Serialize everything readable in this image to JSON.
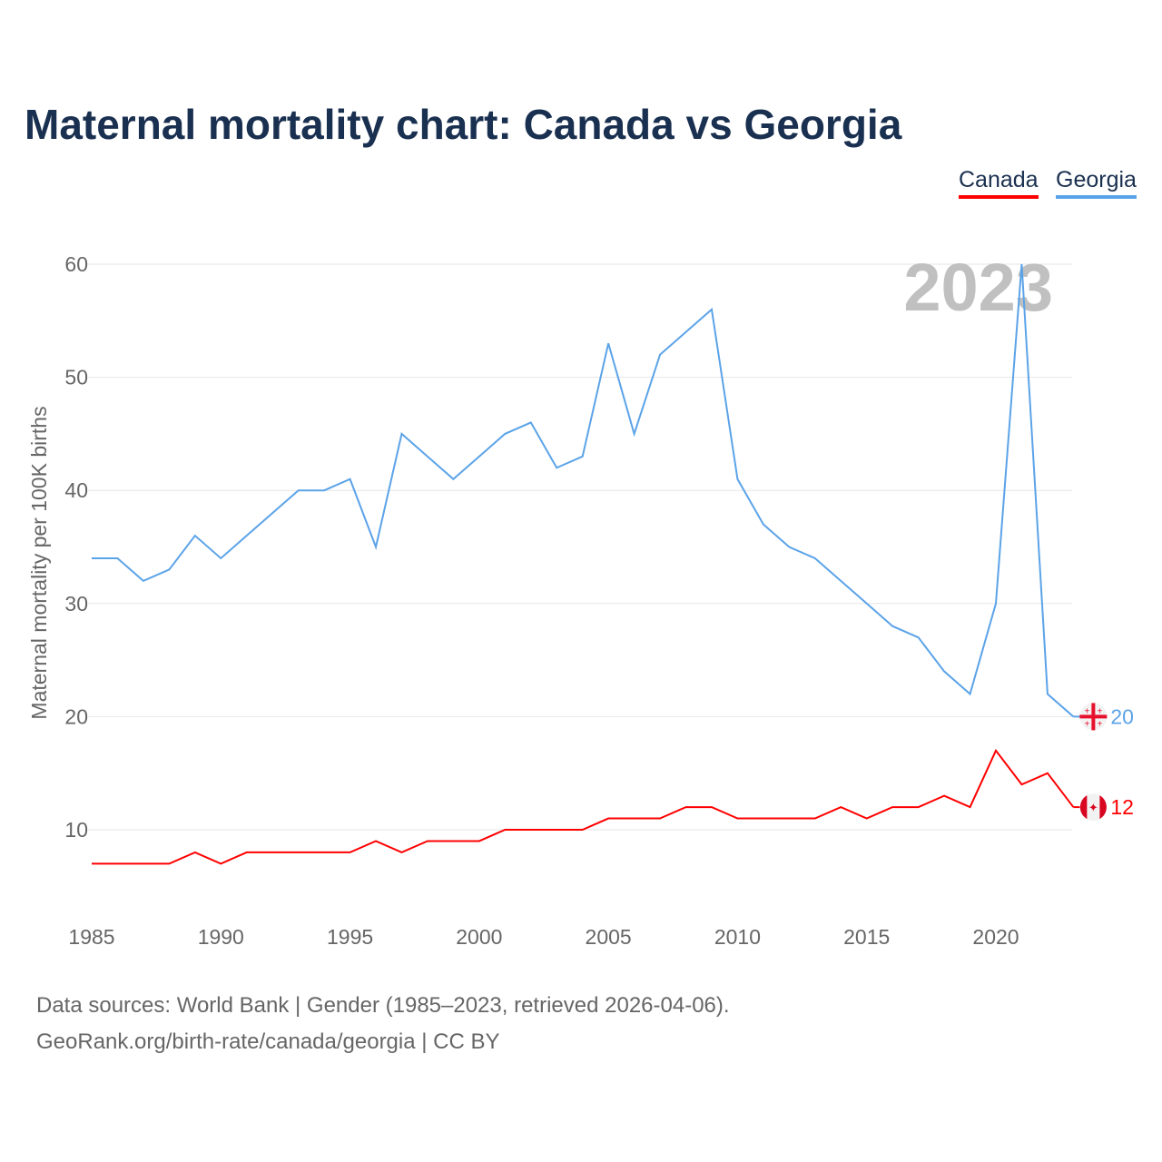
{
  "title": "Maternal mortality chart: Canada vs Georgia",
  "legend": [
    "Canada",
    "Georgia"
  ],
  "source_line1": "Data sources: World Bank | Gender (1985–2023, retrieved 2026-04-06).",
  "source_line2": "GeoRank.org/birth-rate/canada/georgia | CC BY",
  "chart_data": {
    "type": "line",
    "title": "Maternal mortality chart: Canada vs Georgia",
    "ylabel": "Maternal mortality per 100K births",
    "xlabel": "",
    "year_watermark": "2023",
    "ylim": [
      3,
      60
    ],
    "xlim": [
      1985,
      2023
    ],
    "yticks": [
      10,
      20,
      30,
      40,
      50,
      60
    ],
    "xticks": [
      1985,
      1990,
      1995,
      2000,
      2005,
      2010,
      2015,
      2020
    ],
    "x": [
      1985,
      1986,
      1987,
      1988,
      1989,
      1990,
      1991,
      1992,
      1993,
      1994,
      1995,
      1996,
      1997,
      1998,
      1999,
      2000,
      2001,
      2002,
      2003,
      2004,
      2005,
      2006,
      2007,
      2008,
      2009,
      2010,
      2011,
      2012,
      2013,
      2014,
      2015,
      2016,
      2017,
      2018,
      2019,
      2020,
      2021,
      2022,
      2023
    ],
    "series": [
      {
        "name": "Canada",
        "color": "#ff0000",
        "end_label": "12",
        "values": [
          7,
          7,
          7,
          7,
          8,
          7,
          8,
          8,
          8,
          8,
          8,
          9,
          8,
          9,
          9,
          9,
          10,
          10,
          10,
          10,
          11,
          11,
          11,
          12,
          12,
          11,
          11,
          11,
          11,
          12,
          11,
          12,
          12,
          13,
          12,
          17,
          14,
          15,
          12
        ]
      },
      {
        "name": "Georgia",
        "color": "#5ba3e8",
        "end_label": "20",
        "values": [
          34,
          34,
          32,
          33,
          36,
          34,
          36,
          38,
          40,
          40,
          41,
          35,
          45,
          43,
          41,
          43,
          45,
          46,
          42,
          43,
          53,
          45,
          52,
          54,
          56,
          41,
          37,
          35,
          34,
          32,
          30,
          28,
          27,
          24,
          22,
          30,
          60,
          22,
          20
        ]
      }
    ]
  }
}
